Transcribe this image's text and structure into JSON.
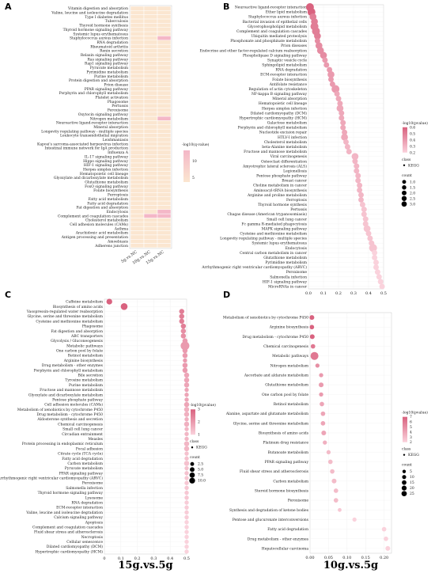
{
  "colors": {
    "low": "#fbe6d0",
    "high": "#f4b7c7",
    "dot_low": "#fad2dc",
    "dot_high": "#d9627f"
  },
  "chart_data": [
    {
      "panel": "A",
      "type": "heatmap",
      "columns": [
        "5g.vs.NC",
        "10g.vs.NC",
        "15g.vs.NC"
      ],
      "legend_title": "-log10(q-value)",
      "legend_ticks": [
        "10",
        "5"
      ],
      "rows": [
        "Vitamin digestion and absorption",
        "Valine, leucine and isoleucine degradation",
        "Type I diabetes mellitus",
        "Tuberculosis",
        "Thyroid hormone synthesis",
        "Thyroid hormone signaling pathway",
        "Systemic lupus erythematosus",
        "Staphylococcus aureus infection",
        "RNA degradation",
        "Rheumatoid arthritis",
        "Renin secretion",
        "Relaxin signaling pathway",
        "Ras signaling pathway",
        "Rap1 signaling pathway",
        "Pyruvate metabolism",
        "Pyrimidine metabolism",
        "Purine metabolism",
        "Protein digestion and absorption",
        "Prion disease",
        "PPAR signaling pathway",
        "Porphyrin and chlorophyll metabolism",
        "Platelet activation",
        "Phagosome",
        "Pertussis",
        "Peroxisome",
        "Oxytocin signaling pathway",
        "Nitrogen metabolism",
        "Neuroactive ligand-receptor interaction",
        "Mineral absorption",
        "Longevity regulating pathway - multiple species",
        "Leukocyte transendothelial migration",
        "Leishmaniasis",
        "Kaposi's sarcoma-associated herpesvirus infection",
        "Intestinal immune network for IgA production",
        "Influenza A",
        "IL-17 signaling pathway",
        "Hippo signaling pathway",
        "HIF-1 signaling pathway",
        "Herpes simplex infection",
        "Hematopoietic cell lineage",
        "Glyoxylate and dicarboxylate metabolism",
        "Glutathione metabolism",
        "FoxO signaling pathway",
        "Folate biosynthesis",
        "Ferroptosis",
        "Fatty acid metabolism",
        "Fatty acid degradation",
        "Fat digestion and absorption",
        "Endocytosis",
        "Complement and coagulation cascades",
        "Cholesterol metabolism",
        "Cell adhesion molecules (CAMs)",
        "Asthma",
        "Arachidonic acid metabolism",
        "Antigen processing and presentation",
        "Amoebiasis",
        "Adherens junction"
      ],
      "high_cells": [
        [
          7,
          2
        ],
        [
          26,
          2
        ],
        [
          48,
          2
        ],
        [
          49,
          1
        ],
        [
          49,
          2
        ]
      ]
    },
    {
      "panel": "B",
      "type": "scatter",
      "title": "15g.vs.10g",
      "x_ticks": [
        "0.0",
        "0.1",
        "0.2",
        "0.3",
        "0.4",
        "0.5"
      ],
      "xlim": [
        0,
        0.5
      ],
      "legend": {
        "color_title": "-log10(pvalue)",
        "color_ticks": [
          "0.6",
          "0.5",
          "0.4",
          "0.3",
          "0.2"
        ],
        "shape_title": "class",
        "shape_item": "KEGG",
        "size_title": "count",
        "size_ticks": [
          "1.0",
          "1.5",
          "2.0",
          "2.5",
          "3.0"
        ]
      },
      "categories": [
        "Neuroactive ligand-receptor interaction",
        "Ether lipid metabolism",
        "Staphylococcus aureus infection",
        "Bacterial invasion of epithelial cells",
        "Glycerophospholipid metabolism",
        "Complement and coagulation cascades",
        "Ubiquitin mediated proteolysis",
        "Phosphonate and phosphinate metabolism",
        "Prion diseases",
        "Endocrine and other factor-regulated calcium reabsorption",
        "Phospholipase D signaling pathway",
        "Synaptic vesicle cycle",
        "Sphingolipid metabolism",
        "RNA degradation",
        "ECM-receptor interaction",
        "Folate biosynthesis",
        "Antifolate resistance",
        "Regulation of actin cytoskeleton",
        "NF-kappa B signaling pathway",
        "Mineral absorption",
        "Hematopoietic cell lineage",
        "Herpes simplex infection",
        "Dilated cardiomyopathy (DCM)",
        "Hypertrophic cardiomyopathy (HCM)",
        "Galactose metabolism",
        "Porphyrin and chlorophyll metabolism",
        "Nucleotide excision repair",
        "HTLV-I infection",
        "Cholesterol metabolism",
        "beta-Alanine metabolism",
        "Fructose and mannose metabolism",
        "Viral carcinogenesis",
        "Osteoclast differentiation",
        "Amyotrophic lateral sclerosis (ALS)",
        "Legionellosis",
        "Pentose phosphate pathway",
        "Breast cancer",
        "Choline metabolism in cancer",
        "Aminoacyl-tRNA biosynthesis",
        "Arginine and proline metabolism",
        "Ferroptosis",
        "Thyroid hormone synthesis",
        "Pertussis",
        "Chagas disease (American trypanosomiasis)",
        "Small cell lung cancer",
        "Fc gamma R-mediated phagocytosis",
        "MAPK signaling pathway",
        "Cysteine and methionine metabolism",
        "Longevity regulating pathway - multiple species",
        "Systemic lupus erythematosus",
        "Endocytosis",
        "Central carbon metabolism in cancer",
        "Glutathione metabolism",
        "Pyrimidine metabolism",
        "Arrhythmogenic right ventricular cardiomyopathy (ARVC)",
        "Peroxisome",
        "Salmonella infection",
        "HIF-1 signaling pathway",
        "MicroRNAs in cancer"
      ],
      "x": [
        0.01,
        0.02,
        0.03,
        0.04,
        0.04,
        0.05,
        0.06,
        0.06,
        0.07,
        0.08,
        0.1,
        0.11,
        0.12,
        0.14,
        0.15,
        0.15,
        0.16,
        0.18,
        0.19,
        0.2,
        0.21,
        0.21,
        0.22,
        0.22,
        0.23,
        0.23,
        0.24,
        0.24,
        0.25,
        0.26,
        0.27,
        0.31,
        0.31,
        0.32,
        0.32,
        0.33,
        0.33,
        0.34,
        0.34,
        0.35,
        0.35,
        0.36,
        0.37,
        0.37,
        0.38,
        0.38,
        0.39,
        0.4,
        0.41,
        0.42,
        0.43,
        0.44,
        0.44,
        0.45,
        0.45,
        0.46,
        0.47,
        0.48,
        0.49
      ],
      "count": [
        3,
        3,
        2,
        2,
        3,
        3,
        2,
        1,
        2,
        2,
        2,
        1,
        1,
        1,
        2,
        1,
        1,
        3,
        1,
        1,
        1,
        2,
        1,
        1,
        1,
        1,
        1,
        2,
        1,
        1,
        1,
        2,
        1,
        1,
        1,
        1,
        1,
        1,
        1,
        1,
        1,
        1,
        1,
        1,
        1,
        1,
        2,
        1,
        1,
        1,
        3,
        1,
        1,
        1,
        1,
        1,
        1,
        1,
        1
      ],
      "neglog10p": [
        0.6,
        0.6,
        0.5,
        0.5,
        0.5,
        0.5,
        0.5,
        0.45,
        0.45,
        0.45,
        0.45,
        0.4,
        0.4,
        0.4,
        0.4,
        0.4,
        0.4,
        0.4,
        0.35,
        0.35,
        0.35,
        0.35,
        0.35,
        0.35,
        0.35,
        0.35,
        0.35,
        0.35,
        0.3,
        0.3,
        0.3,
        0.3,
        0.3,
        0.3,
        0.3,
        0.3,
        0.3,
        0.3,
        0.3,
        0.3,
        0.3,
        0.25,
        0.25,
        0.25,
        0.25,
        0.25,
        0.25,
        0.25,
        0.25,
        0.25,
        0.25,
        0.2,
        0.2,
        0.2,
        0.2,
        0.2,
        0.2,
        0.2,
        0.2
      ]
    },
    {
      "panel": "C",
      "type": "scatter",
      "title": "15g.vs.5g",
      "x_ticks": [
        "0",
        "0.1",
        "0.2",
        "0.3",
        "0.4",
        "0.5"
      ],
      "xlim": [
        0,
        0.5
      ],
      "legend": {
        "color_title": "-log10(pvalue)",
        "color_ticks": [
          "3",
          "2",
          "1"
        ],
        "shape_title": "class",
        "shape_item": "KEGG",
        "size_title": "count",
        "size_ticks": [
          "2.5",
          "5.0",
          "7.5",
          "10.0"
        ]
      },
      "categories": [
        "Caffeine metabolism",
        "Biosynthesis of amino acids",
        "Vasopressin-regulated water reabsorption",
        "Glycine, serine and threonine metabolism",
        "Cysteine and methionine metabolism",
        "Phagosome",
        "Fat digestion and absorption",
        "ABC transporters",
        "Glycolysis / Gluconeogenesis",
        "Metabolic pathways",
        "One carbon pool by folate",
        "Retinol metabolism",
        "Arginine biosynthesis",
        "Drug metabolism - other enzymes",
        "Porphyrin and chlorophyll metabolism",
        "Bile secretion",
        "Tyrosine metabolism",
        "Purine metabolism",
        "Fructose and mannose metabolism",
        "Glyoxylate and dicarboxylate metabolism",
        "Pentose phosphate pathway",
        "Cell adhesion molecules (CAMs)",
        "Metabolism of xenobiotics by cytochrome P450",
        "Drug metabolism - cytochrome P450",
        "Aldosterone synthesis and secretion",
        "Chemical carcinogenesis",
        "Small cell lung cancer",
        "Circadian entrainment",
        "Measles",
        "Protein processing in endoplasmic reticulum",
        "Focal adhesion",
        "Citrate cycle (TCA cycle)",
        "Fatty acid degradation",
        "Carbon metabolism",
        "Pyruvate metabolism",
        "PPAR signaling pathway",
        "Arrhythmogenic right ventricular cardiomyopathy (ARVC)",
        "Peroxisome",
        "Salmonella infection",
        "Thyroid hormone signaling pathway",
        "Lysosome",
        "RNA degradation",
        "ECM-receptor interaction",
        "Valine, leucine and isoleucine degradation",
        "Calcium signaling pathway",
        "Apoptosis",
        "Complement and coagulation cascades",
        "Fluid shear stress and atherosclerosis",
        "Necroptosis",
        "Cellular senescence",
        "Dilated cardiomyopathy (DCM)",
        "Hypertrophic cardiomyopathy (HCM)"
      ],
      "x": [
        0.03,
        0.12,
        0.47,
        0.47,
        0.47,
        0.48,
        0.48,
        0.48,
        0.49,
        0.49,
        0.49,
        0.49,
        0.49,
        0.49,
        0.49,
        0.5,
        0.5,
        0.5,
        0.5,
        0.5,
        0.5,
        0.5,
        0.5,
        0.5,
        0.5,
        0.5,
        0.5,
        0.5,
        0.5,
        0.5,
        0.5,
        0.5,
        0.5,
        0.5,
        0.5,
        0.5,
        0.5,
        0.5,
        0.5,
        0.5,
        0.5,
        0.5,
        0.5,
        0.5,
        0.5,
        0.5,
        0.5,
        0.5,
        0.5,
        0.5,
        0.5,
        0.5
      ],
      "count": [
        3,
        5,
        2,
        2,
        2,
        2,
        2,
        2,
        2,
        10,
        2,
        2,
        1,
        2,
        2,
        2,
        2,
        2,
        1,
        1,
        1,
        2,
        2,
        2,
        1,
        2,
        1,
        1,
        1,
        2,
        2,
        1,
        1,
        2,
        1,
        1,
        1,
        1,
        1,
        1,
        1,
        1,
        1,
        1,
        1,
        1,
        1,
        1,
        1,
        1,
        1,
        1
      ],
      "neglog10p": [
        3,
        3,
        2.5,
        2.5,
        2.5,
        2.5,
        2.2,
        2.2,
        2,
        2,
        2,
        2,
        2,
        2,
        2,
        1.8,
        1.8,
        1.8,
        1.8,
        1.8,
        1.8,
        1.8,
        1.6,
        1.6,
        1.6,
        1.6,
        1.5,
        1.5,
        1.5,
        1.5,
        1.5,
        1.3,
        1.3,
        1.3,
        1.3,
        1.3,
        1.2,
        1.2,
        1.2,
        1.2,
        1.2,
        1.1,
        1.1,
        1.1,
        1.1,
        1,
        1,
        1,
        1,
        1,
        1,
        1
      ]
    },
    {
      "panel": "D",
      "type": "scatter",
      "title": "10g.vs.5g",
      "x_ticks": [
        "0.00",
        "0.05",
        "0.10",
        "0.15",
        "0.20"
      ],
      "xlim": [
        0,
        0.22
      ],
      "legend": {
        "color_title": "-log10(pvalue)",
        "color_ticks": [
          "7",
          "6",
          "5",
          "4",
          "3",
          "2"
        ],
        "shape_title": "class",
        "shape_item": "KEGG",
        "size_title": "count",
        "size_ticks": [
          "5",
          "10",
          "15",
          "20",
          "25"
        ]
      },
      "categories": [
        "Metabolism of xenobiotics by cytochrome P450",
        "Arginine biosynthesis",
        "Drug metabolism - cytochrome P450",
        "Chemical carcinogenesis",
        "Metabolic pathways",
        "Nitrogen metabolism",
        "Ascorbate and aldarate metabolism",
        "Glutathione metabolism",
        "One carbon pool by folate",
        "Retinol metabolism",
        "Alanine, aspartate and glutamate metabolism",
        "Glycine, serine and threonine metabolism",
        "Biosynthesis of amino acids",
        "Platinum drug resistance",
        "Butanoate metabolism",
        "PPAR signaling pathway",
        "Fluid shear stress and atherosclerosis",
        "Carbon metabolism",
        "Steroid hormone biosynthesis",
        "Peroxisome",
        "Synthesis and degradation of ketone bodies",
        "Pentose and glucuronate interconversions",
        "Fatty acid degradation",
        "Drug metabolism - other enzymes",
        "Hepatocellular carcinoma"
      ],
      "x": [
        0.005,
        0.005,
        0.006,
        0.008,
        0.012,
        0.02,
        0.03,
        0.03,
        0.03,
        0.032,
        0.035,
        0.035,
        0.037,
        0.04,
        0.05,
        0.055,
        0.06,
        0.065,
        0.07,
        0.07,
        0.08,
        0.12,
        0.2,
        0.205,
        0.21
      ],
      "count": [
        5,
        4,
        5,
        4,
        25,
        3,
        3,
        5,
        3,
        4,
        4,
        4,
        5,
        3,
        3,
        4,
        4,
        5,
        4,
        4,
        2,
        3,
        4,
        4,
        5
      ],
      "neglog10p": [
        7,
        7,
        7,
        6,
        6,
        5,
        4.5,
        4.5,
        4.5,
        4,
        4,
        4,
        4,
        3.5,
        3,
        3,
        3,
        3,
        3,
        3,
        2.5,
        2,
        2,
        2,
        2
      ]
    }
  ]
}
